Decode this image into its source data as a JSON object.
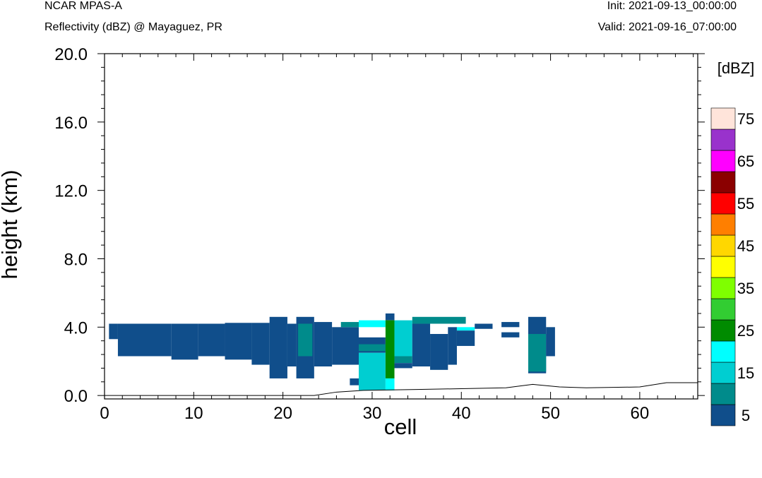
{
  "header": {
    "title": "NCAR MPAS-A",
    "subtitle": "Reflectivity (dBZ) @ Mayaguez, PR",
    "init": "Init: 2021-09-13_00:00:00",
    "valid": "Valid: 2021-09-16_07:00:00"
  },
  "chart_data": {
    "type": "heatmap",
    "xlabel": "cell",
    "ylabel": "height (km)",
    "xlim": [
      0,
      66.5
    ],
    "ylim": [
      -0.2,
      20
    ],
    "xticks": [
      0,
      10,
      20,
      30,
      40,
      50,
      60
    ],
    "xtick_labels": [
      "0",
      "10",
      "20",
      "30",
      "40",
      "50",
      "60"
    ],
    "yticks": [
      0,
      4,
      8,
      12,
      16,
      20
    ],
    "ytick_labels": [
      "0.0",
      "4.0",
      "8.0",
      "12.0",
      "16.0",
      "20.0"
    ],
    "grid": false,
    "colorbar": {
      "title": "[dBZ]",
      "levels": [
        5,
        10,
        15,
        20,
        25,
        30,
        35,
        40,
        45,
        50,
        55,
        60,
        65,
        70,
        75
      ],
      "colors": [
        "#104E8B",
        "#008B8B",
        "#00CED1",
        "#00FFFF",
        "#008B00",
        "#32CD32",
        "#7FFF00",
        "#FFFF00",
        "#FFD700",
        "#FF7F00",
        "#FF0000",
        "#8B0000",
        "#FF00FF",
        "#9932CC",
        "#FFE4DA"
      ],
      "tick_labels": [
        "5",
        "15",
        "25",
        "35",
        "45",
        "55",
        "65",
        "75"
      ],
      "tick_levels": [
        5,
        15,
        25,
        35,
        45,
        55,
        65,
        75
      ]
    },
    "terrain": [
      [
        0,
        0
      ],
      [
        23.5,
        0
      ],
      [
        26,
        0.2
      ],
      [
        29,
        0.3
      ],
      [
        35,
        0.35
      ],
      [
        40,
        0.4
      ],
      [
        45,
        0.45
      ],
      [
        48,
        0.65
      ],
      [
        51,
        0.5
      ],
      [
        54,
        0.45
      ],
      [
        60,
        0.5
      ],
      [
        63,
        0.75
      ],
      [
        66.5,
        0.75
      ]
    ],
    "cells": [
      {
        "x": [
          0.5,
          1.5
        ],
        "y": [
          3.3,
          4.2
        ],
        "dbz": 5
      },
      {
        "x": [
          1.5,
          7.5
        ],
        "y": [
          2.3,
          4.2
        ],
        "dbz": 5
      },
      {
        "x": [
          7.5,
          10.5
        ],
        "y": [
          2.1,
          4.2
        ],
        "dbz": 5
      },
      {
        "x": [
          10.5,
          13.5
        ],
        "y": [
          2.3,
          4.2
        ],
        "dbz": 5
      },
      {
        "x": [
          13.5,
          16.5
        ],
        "y": [
          2.1,
          4.25
        ],
        "dbz": 5
      },
      {
        "x": [
          16.5,
          18.5
        ],
        "y": [
          1.8,
          4.25
        ],
        "dbz": 5
      },
      {
        "x": [
          18.5,
          20.5
        ],
        "y": [
          1.0,
          4.6
        ],
        "dbz": 5
      },
      {
        "x": [
          20.5,
          21.5
        ],
        "y": [
          1.7,
          4.2
        ],
        "dbz": 5
      },
      {
        "x": [
          21.5,
          23.5
        ],
        "y": [
          1.0,
          4.6
        ],
        "dbz": 5
      },
      {
        "x": [
          21.7,
          23.3
        ],
        "y": [
          2.3,
          4.2
        ],
        "dbz": 10
      },
      {
        "x": [
          23.5,
          25.5
        ],
        "y": [
          1.7,
          4.3
        ],
        "dbz": 5
      },
      {
        "x": [
          25.5,
          28.5
        ],
        "y": [
          1.8,
          4.0
        ],
        "dbz": 5
      },
      {
        "x": [
          26.5,
          28.5
        ],
        "y": [
          4.0,
          4.3
        ],
        "dbz": 10
      },
      {
        "x": [
          27.5,
          28.5
        ],
        "y": [
          0.6,
          1.0
        ],
        "dbz": 5
      },
      {
        "x": [
          28.5,
          31.5
        ],
        "y": [
          2.5,
          3.4
        ],
        "dbz": 5
      },
      {
        "x": [
          28.5,
          31.5
        ],
        "y": [
          2.6,
          3.0
        ],
        "dbz": 10
      },
      {
        "x": [
          28.5,
          31.5
        ],
        "y": [
          0.3,
          2.5
        ],
        "dbz": 15
      },
      {
        "x": [
          28.5,
          31.5
        ],
        "y": [
          4.0,
          4.4
        ],
        "dbz": 20
      },
      {
        "x": [
          31.5,
          32.5
        ],
        "y": [
          4.4,
          4.8
        ],
        "dbz": 5
      },
      {
        "x": [
          31.5,
          32.5
        ],
        "y": [
          1.0,
          4.4
        ],
        "dbz": 25
      },
      {
        "x": [
          31.5,
          32.5
        ],
        "y": [
          0.3,
          1.0
        ],
        "dbz": 20
      },
      {
        "x": [
          32.5,
          34.5
        ],
        "y": [
          1.9,
          2.3
        ],
        "dbz": 10
      },
      {
        "x": [
          32.5,
          34.5
        ],
        "y": [
          2.3,
          4.4
        ],
        "dbz": 15
      },
      {
        "x": [
          32.5,
          34.5
        ],
        "y": [
          1.6,
          1.9
        ],
        "dbz": 5
      },
      {
        "x": [
          34.5,
          36.5
        ],
        "y": [
          1.7,
          4.2
        ],
        "dbz": 5
      },
      {
        "x": [
          34.5,
          40.5
        ],
        "y": [
          4.2,
          4.6
        ],
        "dbz": 10
      },
      {
        "x": [
          36.5,
          38.5
        ],
        "y": [
          1.5,
          3.6
        ],
        "dbz": 5
      },
      {
        "x": [
          38.5,
          39.5
        ],
        "y": [
          1.8,
          4.0
        ],
        "dbz": 5
      },
      {
        "x": [
          39.5,
          41.5
        ],
        "y": [
          3.8,
          4.0
        ],
        "dbz": 20
      },
      {
        "x": [
          39.5,
          41.5
        ],
        "y": [
          2.9,
          3.8
        ],
        "dbz": 5
      },
      {
        "x": [
          41.5,
          43.5
        ],
        "y": [
          3.9,
          4.2
        ],
        "dbz": 5
      },
      {
        "x": [
          44.5,
          46.5
        ],
        "y": [
          4.0,
          4.3
        ],
        "dbz": 5
      },
      {
        "x": [
          44.5,
          46.5
        ],
        "y": [
          3.4,
          3.7
        ],
        "dbz": 5
      },
      {
        "x": [
          47.5,
          49.5
        ],
        "y": [
          1.3,
          4.6
        ],
        "dbz": 5
      },
      {
        "x": [
          47.5,
          49.5
        ],
        "y": [
          1.4,
          3.6
        ],
        "dbz": 10
      },
      {
        "x": [
          49.5,
          50.5
        ],
        "y": [
          2.3,
          4.0
        ],
        "dbz": 5
      }
    ]
  }
}
